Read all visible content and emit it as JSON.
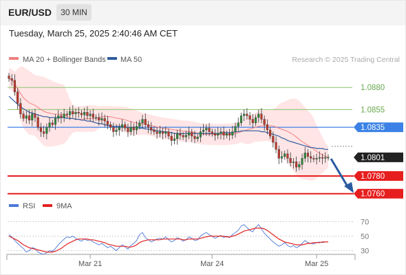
{
  "header": {
    "symbol": "EUR/USD",
    "timeframe": "30 MIN",
    "datetime": "Tuesday, March 25, 2025 2:40:46 AM CET"
  },
  "colors": {
    "ma20": "#f08080",
    "bollinger_fill": "#ffdcdc",
    "ma50": "#2e5c9e",
    "resistance": "#8cc36b",
    "pivot": "#3c82e6",
    "support": "#e61e1e",
    "last_price": "#222222",
    "arrow": "#2a5aa0",
    "candle_up": "#2e8b3c",
    "candle_down": "#c0392b",
    "rsi": "#4a78d8",
    "rsi_ma": "#e02020"
  },
  "chart_data": [
    {
      "type": "candlestick",
      "title": "",
      "legend": {
        "placement": "top-left",
        "items": [
          {
            "name": "MA 20 + Bollinger Bands",
            "color": "#f08080"
          },
          {
            "name": "MA 50",
            "color": "#2e5c9e"
          }
        ]
      },
      "credit": "Research © 2025 Trading Central",
      "ylim": [
        1.0752,
        1.0905
      ],
      "x_ticks": [
        {
          "label": "Mar 21",
          "index": 28
        },
        {
          "label": "Mar 24",
          "index": 70
        },
        {
          "label": "Mar 25",
          "index": 106
        }
      ],
      "levels": [
        {
          "label": "1.0880",
          "value": 1.088,
          "kind": "resistance"
        },
        {
          "label": "1.0855",
          "value": 1.0855,
          "kind": "resistance"
        },
        {
          "label": "1.0835",
          "value": 1.0835,
          "kind": "pivot"
        },
        {
          "label": "1.0801",
          "value": 1.0801,
          "kind": "last_price"
        },
        {
          "label": "1.0780",
          "value": 1.078,
          "kind": "support"
        },
        {
          "label": "1.0760",
          "value": 1.076,
          "kind": "support"
        }
      ],
      "close": [
        1.089,
        1.0888,
        1.0875,
        1.0862,
        1.085,
        1.0845,
        1.0848,
        1.0843,
        1.085,
        1.0846,
        1.0835,
        1.083,
        1.0828,
        1.0835,
        1.084,
        1.0838,
        1.0845,
        1.0848,
        1.0846,
        1.085,
        1.0849,
        1.0853,
        1.085,
        1.0852,
        1.0851,
        1.0849,
        1.0852,
        1.0848,
        1.085,
        1.0846,
        1.0846,
        1.0843,
        1.0845,
        1.0842,
        1.0838,
        1.0835,
        1.083,
        1.0832,
        1.0835,
        1.0838,
        1.0834,
        1.083,
        1.0835,
        1.0832,
        1.0836,
        1.084,
        1.0844,
        1.0838,
        1.0835,
        1.0832,
        1.083,
        1.0828,
        1.083,
        1.0828,
        1.083,
        1.0825,
        1.082,
        1.0822,
        1.0828,
        1.0826,
        1.0824,
        1.0826,
        1.0829,
        1.0825,
        1.0822,
        1.0824,
        1.083,
        1.0832,
        1.0834,
        1.083,
        1.0828,
        1.0826,
        1.0828,
        1.083,
        1.0826,
        1.0828,
        1.0826,
        1.083,
        1.0836,
        1.084,
        1.0848,
        1.085,
        1.0848,
        1.0844,
        1.084,
        1.0846,
        1.085,
        1.0844,
        1.0838,
        1.0832,
        1.0825,
        1.0818,
        1.081,
        1.08,
        1.0802,
        1.0805,
        1.08,
        1.0795,
        1.0796,
        1.079,
        1.0793,
        1.08,
        1.0806,
        1.0802,
        1.08,
        1.0799,
        1.08,
        1.0801,
        1.08,
        1.0801,
        1.0801
      ],
      "ma50": [
        1.087,
        1.0867,
        1.0864,
        1.0861,
        1.0858,
        1.0856,
        1.0854,
        1.0852,
        1.0851,
        1.085,
        1.0849,
        1.0848,
        1.0847,
        1.0847,
        1.0846,
        1.0846,
        1.0846,
        1.0846,
        1.0846,
        1.0846,
        1.0845,
        1.0845,
        1.0845,
        1.0844,
        1.0844,
        1.0843,
        1.0843,
        1.0842,
        1.0842,
        1.0841,
        1.084,
        1.0839,
        1.0839,
        1.0838,
        1.0837,
        1.0837,
        1.0836,
        1.0836,
        1.0836,
        1.0836,
        1.0835,
        1.0835,
        1.0835,
        1.0835,
        1.0835,
        1.0834,
        1.0834,
        1.0833,
        1.0833,
        1.0832,
        1.0832,
        1.0831,
        1.0831,
        1.083,
        1.083,
        1.0829,
        1.0829,
        1.0828,
        1.0828,
        1.0828,
        1.0828,
        1.0828,
        1.0828,
        1.0828,
        1.0828,
        1.0828,
        1.0828,
        1.0828,
        1.0828,
        1.0828,
        1.0828,
        1.0828,
        1.0828,
        1.0828,
        1.0829,
        1.0829,
        1.0829,
        1.0829,
        1.083,
        1.083,
        1.0831,
        1.0831,
        1.0831,
        1.0831,
        1.0831,
        1.0831,
        1.0831,
        1.083,
        1.083,
        1.0829,
        1.0828,
        1.0827,
        1.0826,
        1.0825,
        1.0823,
        1.0822,
        1.082,
        1.0819,
        1.0818,
        1.0817,
        1.0816,
        1.0815,
        1.0814,
        1.0813,
        1.0812,
        1.0812,
        1.0811,
        1.0811,
        1.0811,
        1.081,
        1.081
      ]
    },
    {
      "type": "line",
      "title": "",
      "legend": {
        "placement": "top-left",
        "items": [
          {
            "name": "RSI",
            "color": "#4a78d8"
          },
          {
            "name": "9MA",
            "color": "#e02020"
          }
        ]
      },
      "ylim": [
        20,
        80
      ],
      "y_ticks": [
        70,
        50,
        30
      ],
      "series": [
        {
          "name": "RSI",
          "values": [
            52,
            49,
            44,
            40,
            36,
            33,
            28,
            30,
            34,
            33,
            28,
            26,
            25,
            27,
            30,
            29,
            33,
            38,
            42,
            46,
            49,
            48,
            50,
            47,
            45,
            43,
            46,
            44,
            45,
            42,
            40,
            38,
            40,
            37,
            34,
            36,
            33,
            30,
            34,
            38,
            35,
            32,
            37,
            40,
            44,
            52,
            55,
            48,
            45,
            42,
            44,
            46,
            47,
            46,
            49,
            45,
            42,
            44,
            48,
            46,
            43,
            45,
            49,
            47,
            44,
            45,
            50,
            53,
            55,
            52,
            50,
            47,
            49,
            51,
            48,
            50,
            48,
            52,
            55,
            58,
            64,
            66,
            62,
            58,
            56,
            62,
            66,
            60,
            54,
            50,
            46,
            42,
            39,
            36,
            38,
            41,
            37,
            35,
            37,
            34,
            36,
            40,
            44,
            41,
            40,
            39,
            41,
            42,
            41,
            42,
            42
          ]
        },
        {
          "name": "9MA",
          "values": [
            50,
            48,
            46,
            44,
            41,
            38,
            36,
            34,
            33,
            32,
            31,
            30,
            29,
            28,
            28,
            28,
            29,
            31,
            33,
            36,
            39,
            41,
            43,
            45,
            46,
            46,
            46,
            46,
            45,
            45,
            44,
            43,
            42,
            41,
            39,
            38,
            37,
            36,
            36,
            36,
            36,
            35,
            35,
            36,
            38,
            41,
            43,
            44,
            45,
            45,
            45,
            45,
            45,
            46,
            46,
            46,
            46,
            46,
            46,
            46,
            45,
            45,
            46,
            46,
            46,
            46,
            47,
            48,
            49,
            50,
            50,
            50,
            50,
            50,
            50,
            49,
            49,
            50,
            51,
            53,
            55,
            57,
            58,
            59,
            60,
            61,
            61,
            61,
            60,
            58,
            55,
            52,
            49,
            46,
            44,
            42,
            41,
            40,
            39,
            38,
            38,
            38,
            39,
            40,
            40,
            41,
            41,
            41,
            42,
            42,
            42
          ]
        }
      ]
    }
  ]
}
